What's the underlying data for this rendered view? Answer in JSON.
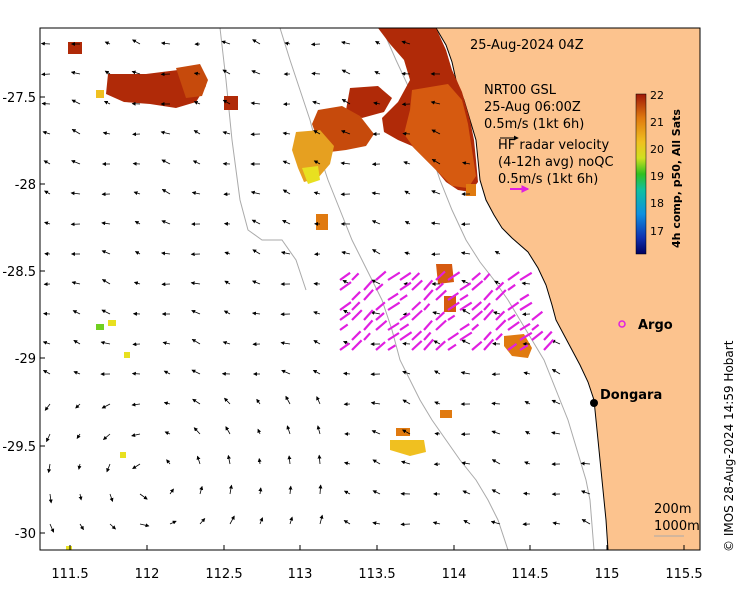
{
  "map": {
    "datetime_label": "25-Aug-2024 04Z",
    "lon_ticks": [
      "111.5",
      "112",
      "112.5",
      "113",
      "113.5",
      "114",
      "114.5",
      "115",
      "115.5"
    ],
    "lat_ticks": [
      "-27.5",
      "-28",
      "-28.5",
      "-29",
      "-29.5",
      "-30"
    ],
    "lon_range": [
      111.3,
      115.6
    ],
    "lat_range": [
      -30.1,
      -27.1
    ]
  },
  "legend": {
    "gsl_title": "NRT00 GSL",
    "gsl_date": "25-Aug 06:00Z",
    "gsl_scale": "0.5m/s (1kt 6h)",
    "hf_title": "HF radar velocity",
    "hf_sub": "(4-12h avg) noQC",
    "hf_scale": "0.5m/s (1kt 6h)",
    "hf_color": "#e020e0"
  },
  "colorbar": {
    "title": "4h comp, p50, All Sats",
    "ticks": [
      "22",
      "21",
      "20",
      "19",
      "18",
      "17"
    ]
  },
  "places": {
    "argo": "Argo",
    "dongara": "Dongara"
  },
  "depth_labels": {
    "d200": "200m",
    "d1000": "1000m"
  },
  "credit": "© IMOS 28-Aug-2024 14:59 Hobart",
  "colors": {
    "land": "#fcc38e",
    "sst_hot": "#b02a08",
    "sst_mid": "#e07a10",
    "sst_cool": "#f0c020",
    "argo_marker": "#e020e0"
  }
}
